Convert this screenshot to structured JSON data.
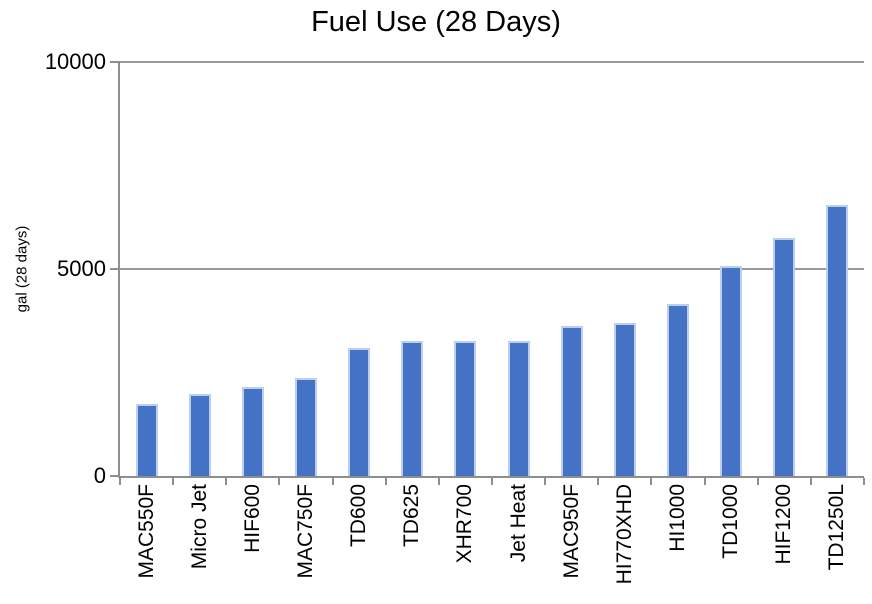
{
  "chart_data": {
    "type": "bar",
    "title": "Fuel Use (28 Days)",
    "xlabel": "",
    "ylabel": "gal (28 days)",
    "categories": [
      "MAC550F",
      "Micro Jet",
      "HIF600",
      "MAC750F",
      "TD600",
      "TD625",
      "XHR700",
      "Jet Heat",
      "MAC950F",
      "HI770XHD",
      "HI1000",
      "TD1000",
      "HIF1200",
      "TD1250L"
    ],
    "values": [
      1750,
      1975,
      2150,
      2360,
      3100,
      3250,
      3250,
      3250,
      3630,
      3700,
      4150,
      5080,
      5740,
      6540
    ],
    "ylim": [
      0,
      10000
    ],
    "y_ticks": [
      0,
      5000,
      10000
    ],
    "grid": "horizontal-only",
    "legend_position": "none",
    "bar_color": "#4472c4",
    "bar_border_color": "#bdcdee",
    "gridline_color": "#999999",
    "axis_color": "#8e8e8e",
    "text_color": "#000000"
  }
}
